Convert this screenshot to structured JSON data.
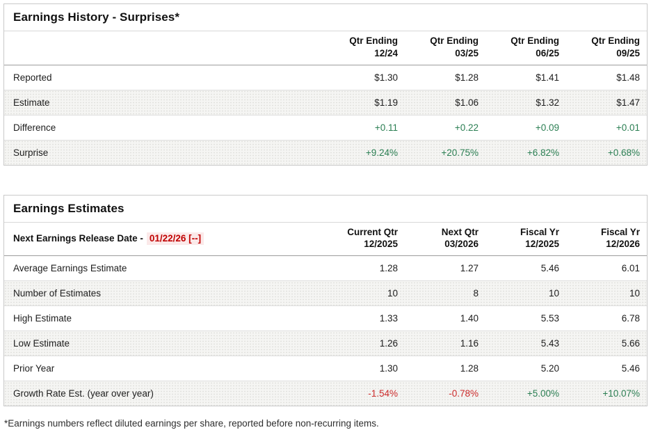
{
  "colors": {
    "positive_value": "#2a7e52",
    "negative_value": "#cc2b2b",
    "release_date_text": "#c00000",
    "release_date_background": "#fbe9e9",
    "row_stripe": "#f5f5f3",
    "panel_border": "#c9c9c9"
  },
  "surprises": {
    "title": "Earnings History - Surprises*",
    "columns": [
      {
        "line1": "Qtr Ending",
        "line2": "12/24"
      },
      {
        "line1": "Qtr Ending",
        "line2": "03/25"
      },
      {
        "line1": "Qtr Ending",
        "line2": "06/25"
      },
      {
        "line1": "Qtr Ending",
        "line2": "09/25"
      }
    ],
    "rows": [
      {
        "label": "Reported",
        "values": [
          "$1.30",
          "$1.28",
          "$1.41",
          "$1.48"
        ]
      },
      {
        "label": "Estimate",
        "values": [
          "$1.19",
          "$1.06",
          "$1.32",
          "$1.47"
        ]
      },
      {
        "label": "Difference",
        "values": [
          "+0.11",
          "+0.22",
          "+0.09",
          "+0.01"
        ]
      },
      {
        "label": "Surprise",
        "values": [
          "+9.24%",
          "+20.75%",
          "+6.82%",
          "+0.68%"
        ]
      }
    ]
  },
  "estimates": {
    "title": "Earnings Estimates",
    "release_label": "Next Earnings Release Date -",
    "release_date": "01/22/26 [--]",
    "columns": [
      {
        "line1": "Current Qtr",
        "line2": "12/2025"
      },
      {
        "line1": "Next Qtr",
        "line2": "03/2026"
      },
      {
        "line1": "Fiscal Yr",
        "line2": "12/2025"
      },
      {
        "line1": "Fiscal Yr",
        "line2": "12/2026"
      }
    ],
    "rows": [
      {
        "label": "Average Earnings Estimate",
        "values": [
          "1.28",
          "1.27",
          "5.46",
          "6.01"
        ]
      },
      {
        "label": "Number of Estimates",
        "values": [
          "10",
          "8",
          "10",
          "10"
        ]
      },
      {
        "label": "High Estimate",
        "values": [
          "1.33",
          "1.40",
          "5.53",
          "6.78"
        ]
      },
      {
        "label": "Low Estimate",
        "values": [
          "1.26",
          "1.16",
          "5.43",
          "5.66"
        ]
      },
      {
        "label": "Prior Year",
        "values": [
          "1.30",
          "1.28",
          "5.20",
          "5.46"
        ]
      },
      {
        "label": "Growth Rate Est. (year over year)",
        "values": [
          "-1.54%",
          "-0.78%",
          "+5.00%",
          "+10.07%"
        ]
      }
    ]
  },
  "footnote": "*Earnings numbers reflect diluted earnings per share, reported before non-recurring items."
}
